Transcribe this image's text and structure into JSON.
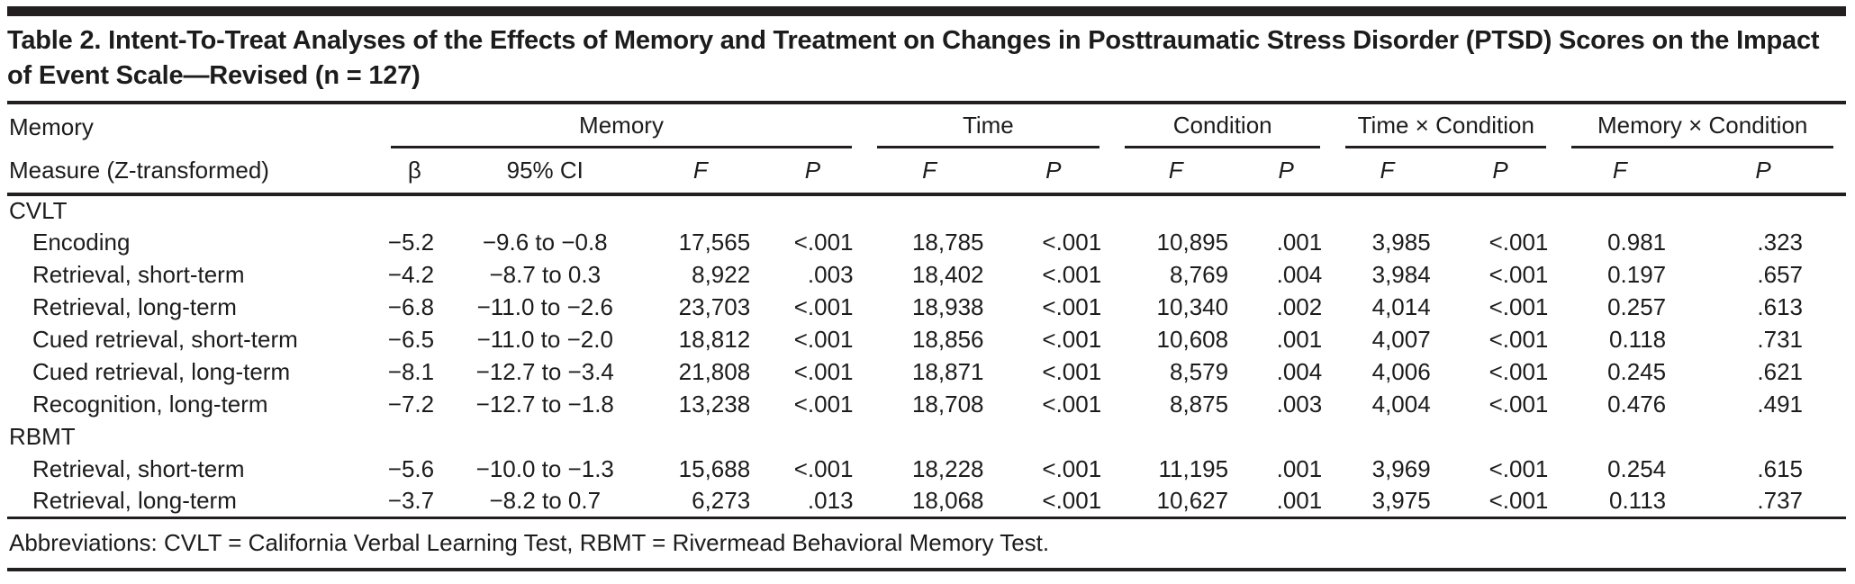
{
  "colors": {
    "ink": "#1c1c1c",
    "rule": "#231f20",
    "background": "#ffffff"
  },
  "table": {
    "title": "Table 2. Intent-To-Treat Analyses of the Effects of Memory and Treatment on Changes in Posttraumatic Stress Disorder (PTSD) Scores on the Impact of Event Scale—Revised (n = 127)",
    "stub_header": {
      "line1": "Memory",
      "line2": "Measure (Z-transformed)"
    },
    "groups": [
      {
        "label": "Memory",
        "columns": [
          "β",
          "95% CI",
          "F",
          "P"
        ]
      },
      {
        "label": "Time",
        "columns": [
          "F",
          "P"
        ]
      },
      {
        "label": "Condition",
        "columns": [
          "F",
          "P"
        ]
      },
      {
        "label": "Time × Condition",
        "columns": [
          "F",
          "P"
        ]
      },
      {
        "label": "Memory × Condition",
        "columns": [
          "F",
          "P"
        ]
      }
    ],
    "sections": [
      {
        "label": "CVLT",
        "rows": [
          {
            "label": "Encoding",
            "values": [
              "−5.2",
              "−9.6 to −0.8",
              "17,565",
              "<.001",
              "18,785",
              "<.001",
              "10,895",
              ".001",
              "3,985",
              "<.001",
              "0.981",
              ".323"
            ]
          },
          {
            "label": "Retrieval, short-term",
            "values": [
              "−4.2",
              "−8.7 to 0.3",
              "8,922",
              ".003",
              "18,402",
              "<.001",
              "8,769",
              ".004",
              "3,984",
              "<.001",
              "0.197",
              ".657"
            ]
          },
          {
            "label": "Retrieval, long-term",
            "values": [
              "−6.8",
              "−11.0 to −2.6",
              "23,703",
              "<.001",
              "18,938",
              "<.001",
              "10,340",
              ".002",
              "4,014",
              "<.001",
              "0.257",
              ".613"
            ]
          },
          {
            "label": "Cued retrieval, short-term",
            "values": [
              "−6.5",
              "−11.0 to −2.0",
              "18,812",
              "<.001",
              "18,856",
              "<.001",
              "10,608",
              ".001",
              "4,007",
              "<.001",
              "0.118",
              ".731"
            ]
          },
          {
            "label": "Cued retrieval, long-term",
            "values": [
              "−8.1",
              "−12.7 to −3.4",
              "21,808",
              "<.001",
              "18,871",
              "<.001",
              "8,579",
              ".004",
              "4,006",
              "<.001",
              "0.245",
              ".621"
            ]
          },
          {
            "label": "Recognition, long-term",
            "values": [
              "−7.2",
              "−12.7 to −1.8",
              "13,238",
              "<.001",
              "18,708",
              "<.001",
              "8,875",
              ".003",
              "4,004",
              "<.001",
              "0.476",
              ".491"
            ]
          }
        ]
      },
      {
        "label": "RBMT",
        "rows": [
          {
            "label": "Retrieval, short-term",
            "values": [
              "−5.6",
              "−10.0 to −1.3",
              "15,688",
              "<.001",
              "18,228",
              "<.001",
              "11,195",
              ".001",
              "3,969",
              "<.001",
              "0.254",
              ".615"
            ]
          },
          {
            "label": "Retrieval, long-term",
            "values": [
              "−3.7",
              "−8.2 to 0.7",
              "6,273",
              ".013",
              "18,068",
              "<.001",
              "10,627",
              ".001",
              "3,975",
              "<.001",
              "0.113",
              ".737"
            ]
          }
        ]
      }
    ],
    "footnote": "Abbreviations: CVLT = California Verbal Learning Test, RBMT = Rivermead Behavioral Memory Test."
  }
}
